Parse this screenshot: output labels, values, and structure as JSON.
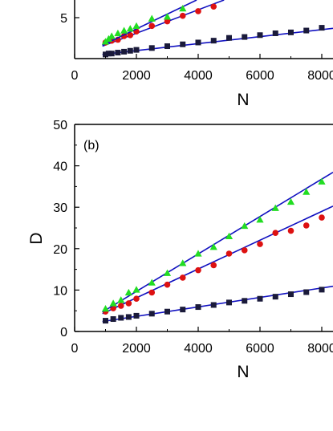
{
  "chart_data": [
    {
      "type": "scatter",
      "panel_label": "",
      "xlabel": "N",
      "ylabel": "",
      "xlim": [
        0,
        8000
      ],
      "ylim": [
        0,
        11
      ],
      "xticks": [
        0,
        2000,
        4000,
        6000,
        8000
      ],
      "xtick_labels": [
        "0",
        "2000",
        "4000",
        "6000",
        "8000"
      ],
      "yticks": [
        5
      ],
      "ytick_labels": [
        "5"
      ],
      "series": [
        {
          "marker": "square",
          "color": "#1a1a3a",
          "x": [
            1000,
            1100,
            1200,
            1400,
            1600,
            1800,
            2000,
            2500,
            3000,
            3500,
            4000,
            4500,
            5000,
            5500,
            6000,
            6500,
            7000,
            7500,
            8000
          ],
          "y": [
            1.0,
            1.1,
            1.1,
            1.2,
            1.3,
            1.4,
            1.5,
            1.7,
            1.9,
            2.1,
            2.3,
            2.5,
            2.8,
            2.9,
            3.1,
            3.3,
            3.4,
            3.6,
            3.9
          ],
          "fit": [
            [
              900,
              1.0
            ],
            [
              8000,
              3.7
            ]
          ]
        },
        {
          "marker": "circle",
          "color": "#dd1111",
          "x": [
            1000,
            1200,
            1400,
            1600,
            1800,
            2000,
            2500,
            3000,
            3500,
            4000,
            4500
          ],
          "y": [
            2.3,
            2.5,
            2.6,
            3.0,
            3.1,
            3.5,
            4.1,
            4.6,
            5.2,
            5.7,
            6.2
          ],
          "fit": [
            [
              900,
              1.9
            ],
            [
              4900,
              7.0
            ]
          ]
        },
        {
          "marker": "triangle",
          "color": "#22dd22",
          "x": [
            1000,
            1100,
            1200,
            1400,
            1600,
            1800,
            2000,
            2500,
            3000,
            3500
          ],
          "y": [
            2.4,
            2.7,
            3.0,
            3.3,
            3.6,
            3.8,
            4.1,
            4.9,
            5.1,
            6.0
          ],
          "fit": [
            [
              900,
              2.0
            ],
            [
              4000,
              7.0
            ]
          ]
        }
      ]
    },
    {
      "type": "scatter",
      "panel_label": "(b)",
      "xlabel": "N",
      "ylabel": "D",
      "xlim": [
        0,
        8000
      ],
      "ylim": [
        0,
        50
      ],
      "xticks": [
        0,
        2000,
        4000,
        6000,
        8000
      ],
      "xtick_labels": [
        "0",
        "2000",
        "4000",
        "6000",
        "8000"
      ],
      "yticks": [
        0,
        10,
        20,
        30,
        40,
        50
      ],
      "ytick_labels": [
        "0",
        "10",
        "20",
        "30",
        "40",
        "50"
      ],
      "series": [
        {
          "marker": "square",
          "color": "#1a1a3a",
          "x": [
            1000,
            1250,
            1500,
            1750,
            2000,
            2500,
            3000,
            3500,
            4000,
            4500,
            5000,
            5500,
            6000,
            6500,
            7000,
            7500,
            8000
          ],
          "y": [
            2.6,
            3.0,
            3.3,
            3.5,
            3.8,
            4.3,
            4.8,
            5.3,
            5.9,
            6.4,
            7.0,
            7.4,
            7.9,
            8.4,
            9.0,
            9.5,
            10.1
          ],
          "fit": [
            [
              900,
              2.4
            ],
            [
              8000,
              10.5
            ]
          ]
        },
        {
          "marker": "circle",
          "color": "#dd1111",
          "x": [
            1000,
            1250,
            1500,
            1750,
            2000,
            2500,
            3000,
            3500,
            4000,
            4500,
            5000,
            5500,
            6000,
            6500,
            7000,
            7500,
            8000
          ],
          "y": [
            4.8,
            5.6,
            6.2,
            6.8,
            7.9,
            9.4,
            11.3,
            13.0,
            14.8,
            16.0,
            18.8,
            19.6,
            21.1,
            23.8,
            24.3,
            25.6,
            27.5
          ],
          "fit": [
            [
              900,
              4.3
            ],
            [
              8000,
              29.0
            ]
          ]
        },
        {
          "marker": "triangle",
          "color": "#22dd22",
          "x": [
            1000,
            1250,
            1500,
            1750,
            2000,
            2500,
            3000,
            3500,
            4000,
            4500,
            5000,
            5500,
            6000,
            6500,
            7000,
            7500,
            8000
          ],
          "y": [
            5.5,
            6.8,
            7.6,
            9.4,
            10.1,
            11.8,
            14.1,
            16.5,
            18.8,
            20.4,
            23.0,
            25.5,
            27.0,
            29.8,
            31.3,
            33.7,
            36.2
          ],
          "fit": [
            [
              900,
              4.7
            ],
            [
              8000,
              36.8
            ]
          ]
        }
      ]
    }
  ]
}
